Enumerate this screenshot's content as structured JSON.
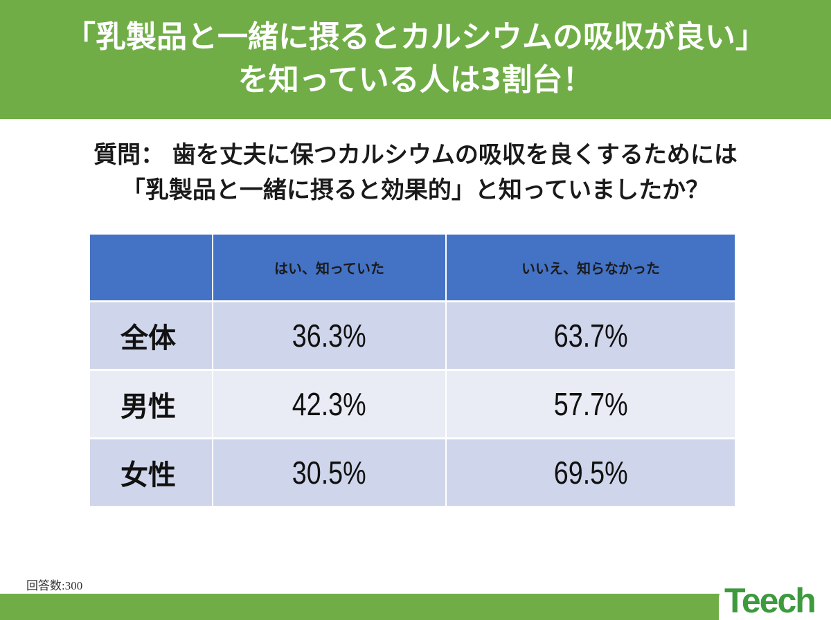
{
  "title": {
    "line1": "「乳製品と一緒に摂るとカルシウムの吸収が良い」",
    "line2": "を知っている人は3割台！"
  },
  "question": {
    "line1": "質問： 歯を丈夫に保つカルシウムの吸収を良くするためには",
    "line2": "「乳製品と一緒に摂ると効果的」と知っていましたか？"
  },
  "chart_data": {
    "type": "table",
    "columns": [
      "",
      "はい、知っていた",
      "いいえ、知らなかった"
    ],
    "rows": [
      {
        "label": "全体",
        "values": [
          "36.3%",
          "63.7%"
        ]
      },
      {
        "label": "男性",
        "values": [
          "42.3%",
          "57.7%"
        ]
      },
      {
        "label": "女性",
        "values": [
          "30.5%",
          "69.5%"
        ]
      }
    ]
  },
  "footnote": "回答数:300",
  "logo": "Teech",
  "colors": {
    "banner": "#70ad47",
    "header": "#4472c4",
    "row_dark": "#cfd5ea",
    "row_light": "#e9ebf5"
  }
}
